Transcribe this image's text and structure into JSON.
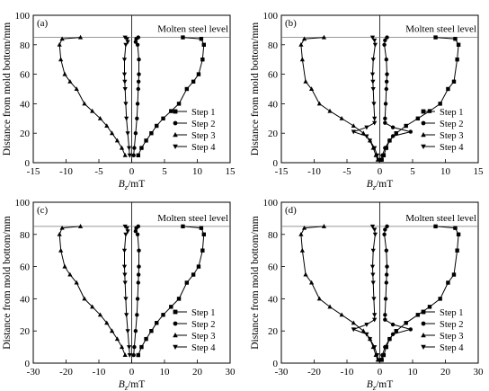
{
  "figure": {
    "ylabel": "Distance from mold bottom/mm",
    "xlabel_main": "B",
    "xlabel_sub": "z",
    "xlabel_unit": "/mT"
  },
  "chart_data": [
    {
      "type": "line",
      "panel_label": "(a)",
      "annotation": "Molten steel level",
      "level_y": 85,
      "xlim": [
        -15,
        15
      ],
      "ylim": [
        0,
        100
      ],
      "xticks": [
        -15,
        -10,
        -5,
        0,
        5,
        10,
        15
      ],
      "yticks": [
        0,
        20,
        40,
        60,
        80,
        100
      ],
      "xlabel": "Bz/mT",
      "ylabel": "Distance from mold bottom/mm",
      "legend_position": "bottom-right",
      "series": [
        {
          "name": "Step 1",
          "marker": "square",
          "x": [
            1.0,
            1.5,
            2.2,
            3.0,
            3.8,
            4.8,
            6.0,
            7.2,
            8.4,
            9.4,
            10.2,
            10.8,
            11.0,
            10.6,
            7.8
          ],
          "y": [
            5,
            10,
            15,
            20,
            25,
            30,
            35,
            40,
            50,
            55,
            60,
            70,
            80,
            84,
            85
          ]
        },
        {
          "name": "Step 2",
          "marker": "circle",
          "x": [
            0.3,
            0.4,
            0.6,
            0.8,
            0.9,
            1.0,
            1.05,
            1.1,
            1.1,
            0.9,
            0.6,
            0.7,
            1.0
          ],
          "y": [
            5,
            10,
            20,
            30,
            40,
            50,
            55,
            60,
            70,
            80,
            82,
            84,
            85
          ]
        },
        {
          "name": "Step 3",
          "marker": "triangle",
          "x": [
            -1.0,
            -1.5,
            -2.2,
            -3.0,
            -3.8,
            -4.8,
            -6.0,
            -7.2,
            -8.4,
            -9.4,
            -10.2,
            -10.8,
            -11.0,
            -10.6,
            -7.8
          ],
          "y": [
            5,
            10,
            15,
            20,
            25,
            30,
            35,
            40,
            50,
            55,
            60,
            70,
            80,
            84,
            85
          ]
        },
        {
          "name": "Step 4",
          "marker": "triangle-down",
          "x": [
            -0.3,
            -0.4,
            -0.6,
            -0.8,
            -0.9,
            -1.0,
            -1.05,
            -1.1,
            -1.1,
            -0.9,
            -0.6,
            -0.7,
            -1.0
          ],
          "y": [
            5,
            10,
            20,
            30,
            40,
            50,
            55,
            60,
            70,
            80,
            82,
            84,
            85
          ]
        }
      ]
    },
    {
      "type": "line",
      "panel_label": "(b)",
      "annotation": "Molten steel level",
      "level_y": 85,
      "xlim": [
        -15,
        15
      ],
      "ylim": [
        0,
        100
      ],
      "xticks": [
        -15,
        -10,
        -5,
        0,
        5,
        10,
        15
      ],
      "yticks": [
        0,
        20,
        40,
        60,
        80,
        100
      ],
      "xlabel": "Bz/mT",
      "ylabel": "Distance from mold bottom/mm",
      "legend_position": "bottom-right",
      "series": [
        {
          "name": "Step 1",
          "marker": "square",
          "x": [
            0.3,
            0.6,
            1.0,
            1.5,
            2.5,
            4.0,
            5.8,
            7.6,
            9.2,
            10.4,
            11.3,
            11.8,
            12.0,
            11.5,
            8.5
          ],
          "y": [
            2,
            5,
            10,
            15,
            20,
            25,
            30,
            35,
            40,
            50,
            55,
            70,
            80,
            84,
            85
          ]
        },
        {
          "name": "Step 2",
          "marker": "circle",
          "x": [
            0.2,
            0.4,
            0.8,
            1.5,
            2.0,
            4.7,
            2.0,
            0.8,
            0.8,
            0.9,
            1.0,
            1.05,
            1.1,
            1.0,
            0.7,
            0.8,
            1.1
          ],
          "y": [
            2,
            5,
            10,
            15,
            18,
            21,
            24,
            27,
            30,
            40,
            50,
            55,
            60,
            70,
            80,
            83,
            85
          ]
        },
        {
          "name": "Step 3",
          "marker": "triangle",
          "x": [
            -0.3,
            -0.6,
            -1.0,
            -1.5,
            -2.5,
            -4.0,
            -5.8,
            -7.6,
            -9.2,
            -10.4,
            -11.3,
            -11.8,
            -12.0,
            -11.5,
            -8.5
          ],
          "y": [
            2,
            5,
            10,
            15,
            20,
            25,
            30,
            35,
            40,
            50,
            55,
            70,
            80,
            84,
            85
          ]
        },
        {
          "name": "Step 4",
          "marker": "triangle-down",
          "x": [
            -0.2,
            -0.4,
            -0.8,
            -1.5,
            -2.0,
            -4.0,
            -2.0,
            -0.8,
            -0.8,
            -0.9,
            -1.0,
            -1.05,
            -1.1,
            -1.0,
            -0.7,
            -0.8,
            -1.1
          ],
          "y": [
            2,
            5,
            10,
            15,
            18,
            21,
            24,
            27,
            30,
            40,
            50,
            55,
            60,
            70,
            80,
            83,
            85
          ]
        }
      ]
    },
    {
      "type": "line",
      "panel_label": "(c)",
      "annotation": "Molten steel level",
      "level_y": 85,
      "xlim": [
        -30,
        30
      ],
      "ylim": [
        0,
        100
      ],
      "xticks": [
        -30,
        -20,
        -10,
        0,
        10,
        20,
        30
      ],
      "yticks": [
        0,
        20,
        40,
        60,
        80,
        100
      ],
      "xlabel": "Bz/mT",
      "ylabel": "Distance from mold bottom/mm",
      "legend_position": "bottom-right",
      "series": [
        {
          "name": "Step 1",
          "marker": "square",
          "x": [
            2.0,
            3.0,
            4.4,
            6.0,
            7.6,
            9.6,
            12.0,
            14.4,
            16.8,
            18.8,
            20.4,
            21.6,
            22.0,
            21.2,
            15.6
          ],
          "y": [
            5,
            10,
            15,
            20,
            25,
            30,
            35,
            40,
            50,
            55,
            60,
            70,
            80,
            84,
            85
          ]
        },
        {
          "name": "Step 2",
          "marker": "circle",
          "x": [
            0.6,
            0.8,
            1.2,
            1.6,
            1.8,
            2.0,
            2.1,
            2.2,
            2.2,
            1.8,
            1.2,
            1.4,
            2.0
          ],
          "y": [
            5,
            10,
            20,
            30,
            40,
            50,
            55,
            60,
            70,
            80,
            82,
            84,
            85
          ]
        },
        {
          "name": "Step 3",
          "marker": "triangle",
          "x": [
            -2.0,
            -3.0,
            -4.4,
            -6.0,
            -7.6,
            -9.6,
            -12.0,
            -14.4,
            -16.8,
            -18.8,
            -20.4,
            -21.6,
            -22.0,
            -21.2,
            -15.6
          ],
          "y": [
            5,
            10,
            15,
            20,
            25,
            30,
            35,
            40,
            50,
            55,
            60,
            70,
            80,
            84,
            85
          ]
        },
        {
          "name": "Step 4",
          "marker": "triangle-down",
          "x": [
            -0.6,
            -0.8,
            -1.2,
            -1.6,
            -1.8,
            -2.0,
            -2.1,
            -2.2,
            -2.2,
            -1.8,
            -1.2,
            -1.4,
            -2.0
          ],
          "y": [
            5,
            10,
            20,
            30,
            40,
            50,
            55,
            60,
            70,
            80,
            82,
            84,
            85
          ]
        }
      ]
    },
    {
      "type": "line",
      "panel_label": "(d)",
      "annotation": "Molten steel level",
      "level_y": 85,
      "xlim": [
        -30,
        30
      ],
      "ylim": [
        0,
        100
      ],
      "xticks": [
        -30,
        -20,
        -10,
        0,
        10,
        20,
        30
      ],
      "yticks": [
        0,
        20,
        40,
        60,
        80,
        100
      ],
      "xlabel": "Bz/mT",
      "ylabel": "Distance from mold bottom/mm",
      "legend_position": "bottom-right",
      "series": [
        {
          "name": "Step 1",
          "marker": "square",
          "x": [
            0.6,
            1.2,
            2.0,
            3.0,
            5.0,
            8.0,
            11.6,
            15.2,
            18.4,
            20.8,
            22.6,
            23.6,
            24.0,
            23.0,
            17.0
          ],
          "y": [
            2,
            5,
            10,
            15,
            20,
            25,
            30,
            35,
            40,
            50,
            55,
            70,
            80,
            84,
            85
          ]
        },
        {
          "name": "Step 2",
          "marker": "circle",
          "x": [
            0.4,
            0.8,
            1.6,
            3.0,
            4.0,
            9.4,
            4.0,
            1.6,
            1.6,
            1.8,
            2.0,
            2.1,
            2.2,
            2.0,
            1.4,
            1.6,
            2.2
          ],
          "y": [
            2,
            5,
            10,
            15,
            18,
            21,
            24,
            27,
            30,
            40,
            50,
            55,
            60,
            70,
            80,
            83,
            85
          ]
        },
        {
          "name": "Step 3",
          "marker": "triangle",
          "x": [
            -0.6,
            -1.2,
            -2.0,
            -3.0,
            -5.0,
            -8.0,
            -11.6,
            -15.2,
            -18.4,
            -20.8,
            -22.6,
            -23.6,
            -24.0,
            -23.0,
            -17.0
          ],
          "y": [
            2,
            5,
            10,
            15,
            20,
            25,
            30,
            35,
            40,
            50,
            55,
            70,
            80,
            84,
            85
          ]
        },
        {
          "name": "Step 4",
          "marker": "triangle-down",
          "x": [
            -0.4,
            -0.8,
            -1.6,
            -3.0,
            -4.0,
            -8.0,
            -4.0,
            -1.6,
            -1.6,
            -1.8,
            -2.0,
            -2.1,
            -2.2,
            -2.0,
            -1.4,
            -1.6,
            -2.2
          ],
          "y": [
            2,
            5,
            10,
            15,
            18,
            21,
            24,
            27,
            30,
            40,
            50,
            55,
            60,
            70,
            80,
            83,
            85
          ]
        }
      ]
    }
  ]
}
